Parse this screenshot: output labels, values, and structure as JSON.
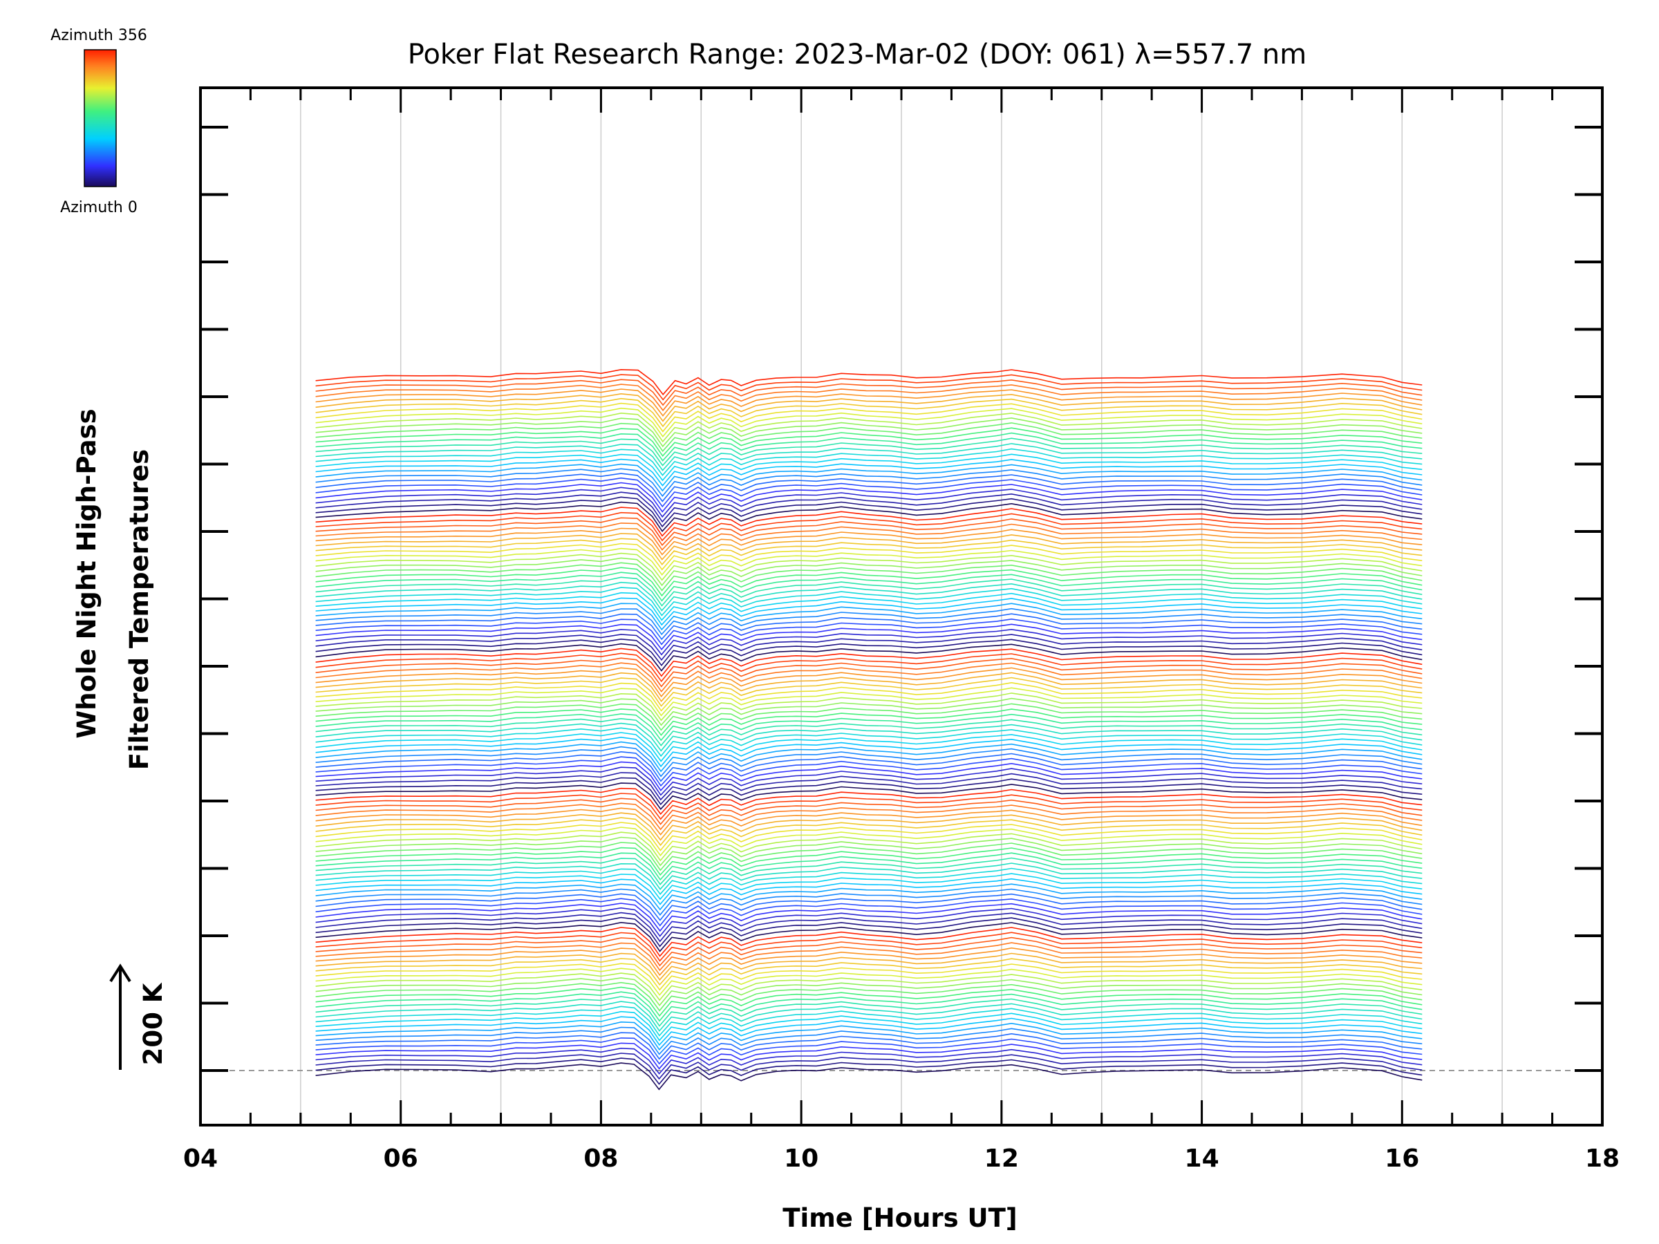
{
  "chart_data": {
    "type": "line",
    "title": "Poker Flat Research Range: 2023-Mar-02 (DOY: 061) λ=557.7 nm",
    "xlabel": "Time [Hours UT]",
    "ylabel_line1": "Whole Night High-Pass",
    "ylabel_line2": "Filtered Temperatures",
    "xlim": [
      4,
      18
    ],
    "x_ticks": [
      "04",
      "06",
      "08",
      "10",
      "12",
      "14",
      "16",
      "18"
    ],
    "x_tick_values": [
      4,
      6,
      8,
      10,
      12,
      14,
      16,
      18
    ],
    "scale_bar_label": "200 K",
    "scale_bar_kelvin": 200,
    "grid": true,
    "colorbar": {
      "top_label": "Azimuth 356",
      "bottom_label": "Azimuth 0",
      "colormap": "rainbow",
      "min": 0,
      "max": 356
    },
    "series_count": 140,
    "series_offset_kelvin": 20,
    "baseline_kelvin": 0,
    "azimuth_cycle": [
      0,
      356
    ],
    "time_samples_hours_ut": [
      5.15,
      5.5,
      5.85,
      6.2,
      6.55,
      6.9,
      7.15,
      7.35,
      7.6,
      7.8,
      8.0,
      8.2,
      8.35,
      8.5,
      8.6,
      8.72,
      8.85,
      8.97,
      9.08,
      9.2,
      9.3,
      9.4,
      9.55,
      9.75,
      9.95,
      10.15,
      10.4,
      10.65,
      10.9,
      11.15,
      11.4,
      11.7,
      11.95,
      12.1,
      12.35,
      12.6,
      12.85,
      13.15,
      13.4,
      13.7,
      14.0,
      14.3,
      14.65,
      15.0,
      15.4,
      15.8,
      16.0,
      16.2
    ],
    "temperature_deviation_kelvin_typical": [
      -20,
      -8,
      0,
      2,
      4,
      0,
      10,
      8,
      14,
      20,
      14,
      28,
      24,
      -20,
      -70,
      -20,
      -30,
      -5,
      -30,
      -10,
      -15,
      -35,
      -15,
      -5,
      0,
      0,
      12,
      4,
      0,
      -10,
      -5,
      10,
      18,
      25,
      10,
      -12,
      -8,
      -4,
      -2,
      2,
      4,
      -8,
      -10,
      -6,
      6,
      -2,
      -20,
      -30
    ],
    "reference_line_kelvin": 0,
    "colors": {
      "axis": "#000000",
      "grid": "#cccccc",
      "reference_line": "#999999"
    }
  }
}
